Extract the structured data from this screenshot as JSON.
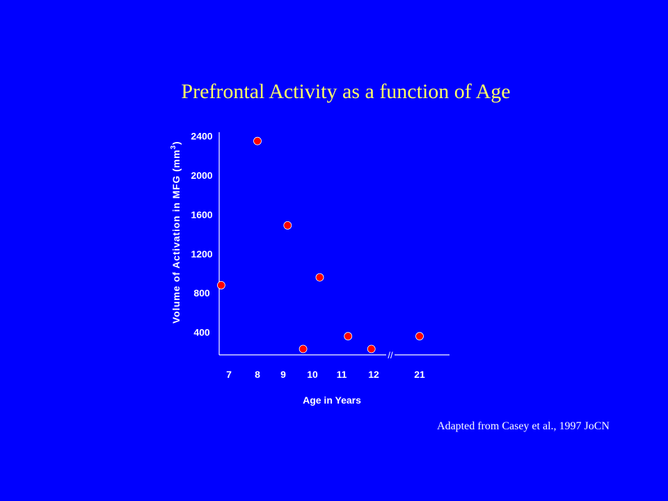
{
  "slide": {
    "background_color": "#0000ff",
    "title": "Prefrontal Activity as a function of Age",
    "title_color": "#ffff66",
    "source_note": "Adapted from Casey et al., 1997 JoCN"
  },
  "chart_data": {
    "type": "scatter",
    "title": "Prefrontal Activity as a function of Age",
    "xlabel": "Age in Years",
    "ylabel_prefix": "Volume of Activation in MFG (mm",
    "ylabel_superscript": "3",
    "ylabel_suffix": ")",
    "x_ticks": [
      "7",
      "8",
      "9",
      "10",
      "11",
      "12",
      "21"
    ],
    "x_axis_break": "//",
    "y_ticks": [
      400,
      800,
      1200,
      1600,
      2000,
      2400
    ],
    "ylim": [
      170,
      2440
    ],
    "grid": false,
    "legend": "none",
    "marker_color": "#ff0000",
    "marker_edge_color": "#ffffff",
    "points": [
      {
        "x": "7",
        "offset": -0.27,
        "y": 880
      },
      {
        "x": "8",
        "offset": 0,
        "y": 2350
      },
      {
        "x": "9",
        "offset": 0.15,
        "y": 1490
      },
      {
        "x": "10",
        "offset": -0.32,
        "y": 230
      },
      {
        "x": "10",
        "offset": 0.25,
        "y": 960
      },
      {
        "x": "11",
        "offset": 0.2,
        "y": 360
      },
      {
        "x": "12",
        "offset": -0.05,
        "y": 230
      },
      {
        "x": "21",
        "offset": 0,
        "y": 360
      }
    ]
  }
}
